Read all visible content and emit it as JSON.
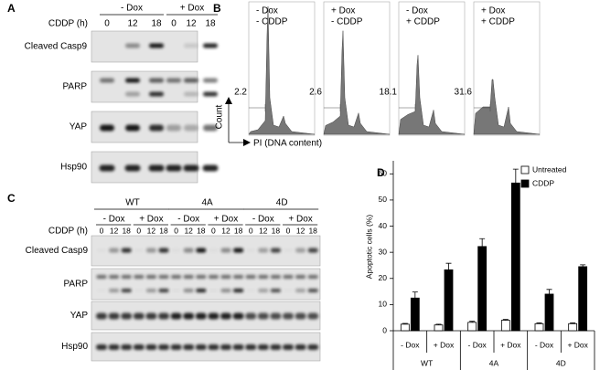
{
  "panel_a": {
    "label": "A",
    "conditions": [
      "- Dox",
      "+ Dox"
    ],
    "time_label": "CDDP (h)",
    "times": [
      "0",
      "12",
      "18",
      "0",
      "12",
      "18"
    ],
    "rows": [
      "Cleaved Casp9",
      "PARP",
      "YAP",
      "Hsp90"
    ]
  },
  "panel_b": {
    "label": "B",
    "y_label": "Count",
    "x_label": "PI (DNA content)",
    "plots": [
      {
        "dox": "- Dox",
        "cddp": "- CDDP",
        "value": 2.2
      },
      {
        "dox": "+ Dox",
        "cddp": "- CDDP",
        "value": 2.6
      },
      {
        "dox": "- Dox",
        "cddp": "+ CDDP",
        "value": 18.1
      },
      {
        "dox": "+ Dox",
        "cddp": "+ CDDP",
        "value": 31.6
      }
    ]
  },
  "panel_c": {
    "label": "C",
    "groups": [
      "WT",
      "4A",
      "4D"
    ],
    "conditions": [
      "- Dox",
      "+ Dox"
    ],
    "time_label": "CDDP (h)",
    "times": [
      "0",
      "12",
      "18"
    ],
    "rows": [
      "Cleaved Casp9",
      "PARP",
      "YAP",
      "Hsp90"
    ]
  },
  "chart_data": {
    "type": "bar",
    "panel_label": "D",
    "y_label": "Apoptotic cells (%)",
    "categories": [
      "- Dox",
      "+ Dox",
      "- Dox",
      "+ Dox",
      "- Dox",
      "+ Dox"
    ],
    "groups": [
      "WT",
      "4A",
      "4D"
    ],
    "series": [
      {
        "name": "Untreated",
        "color": "#ffffff",
        "values": [
          2.5,
          2.2,
          3.2,
          4.0,
          2.7,
          2.7
        ],
        "errors": [
          0.3,
          0.3,
          0.4,
          0.3,
          0.3,
          0.3
        ]
      },
      {
        "name": "CDDP",
        "color": "#000000",
        "values": [
          12.5,
          23.3,
          32.2,
          56.5,
          14.0,
          24.5
        ],
        "errors": [
          2.3,
          2.5,
          3.0,
          5.3,
          1.8,
          0.7
        ]
      }
    ],
    "ylim": [
      0,
      65
    ],
    "yticks": [
      0,
      10,
      20,
      30,
      40,
      50,
      60
    ],
    "legend": "upper-left"
  }
}
